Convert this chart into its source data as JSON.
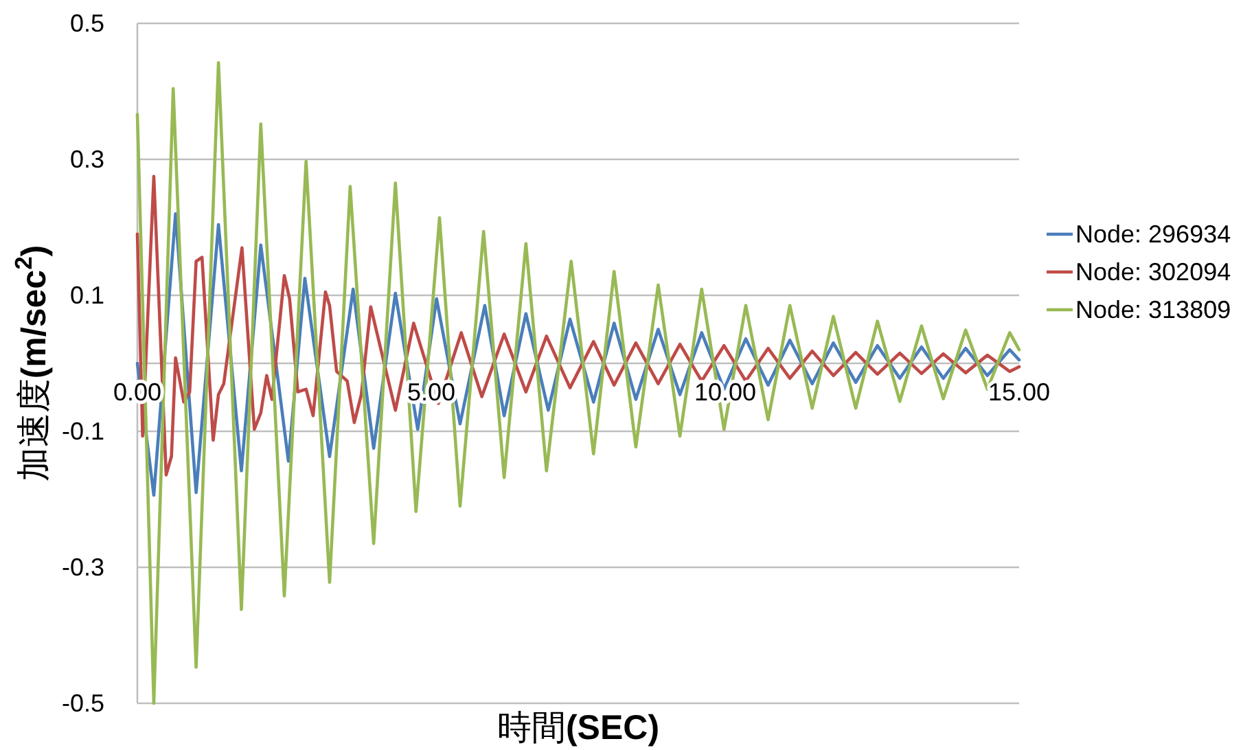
{
  "chart_data": {
    "type": "line",
    "xlabel": "時間**(SEC)**",
    "ylabel": "加速度**(m/sec$^{2}$)**",
    "xlim": [
      0,
      15
    ],
    "ylim": [
      -0.5,
      0.5
    ],
    "xticks": [
      {
        "value": 0,
        "label": "0.00"
      },
      {
        "value": 5,
        "label": "5.00"
      },
      {
        "value": 10,
        "label": "10.00"
      },
      {
        "value": 15,
        "label": "15.00"
      }
    ],
    "yticks": [
      -0.5,
      -0.3,
      -0.1,
      0.1,
      0.3,
      0.5
    ],
    "grid": "y",
    "legend": "right",
    "marker": "none",
    "line_style": "solid",
    "series": [
      {
        "name": "Node: 296934",
        "color": "#4a7ebb",
        "x": [
          0,
          0.28,
          0.65,
          1.0,
          1.38,
          1.77,
          2.1,
          2.57,
          2.85,
          3.27,
          3.67,
          4.02,
          4.39,
          4.77,
          5.09,
          5.49,
          5.91,
          6.24,
          6.61,
          6.99,
          7.36,
          7.76,
          8.11,
          8.48,
          8.86,
          9.23,
          9.6,
          9.98,
          10.35,
          10.73,
          11.1,
          11.48,
          11.84,
          12.22,
          12.59,
          12.97,
          13.34,
          13.71,
          14.09,
          14.46,
          14.84,
          15
        ],
        "values": [
          0,
          -0.194,
          0.22,
          -0.19,
          0.204,
          -0.158,
          0.174,
          -0.144,
          0.125,
          -0.137,
          0.109,
          -0.125,
          0.103,
          -0.097,
          0.095,
          -0.089,
          0.085,
          -0.077,
          0.073,
          -0.069,
          0.065,
          -0.057,
          0.059,
          -0.053,
          0.05,
          -0.046,
          0.045,
          -0.038,
          0.036,
          -0.032,
          0.034,
          -0.03,
          0.03,
          -0.028,
          0.026,
          -0.022,
          0.024,
          -0.022,
          0.022,
          -0.018,
          0.02,
          0.005
        ]
      },
      {
        "name": "Node: 302094",
        "color": "#be4b48",
        "x": [
          0,
          0.09,
          0.28,
          0.49,
          0.58,
          0.65,
          0.79,
          0.89,
          1.0,
          1.1,
          1.29,
          1.38,
          1.47,
          1.78,
          1.99,
          2.1,
          2.2,
          2.29,
          2.5,
          2.59,
          2.73,
          2.87,
          2.99,
          3.2,
          3.27,
          3.39,
          3.57,
          3.69,
          3.81,
          3.97,
          4.39,
          4.7,
          5.12,
          5.51,
          5.86,
          6.24,
          6.61,
          6.96,
          7.36,
          7.76,
          8.11,
          8.48,
          8.86,
          9.23,
          9.6,
          9.98,
          10.35,
          10.73,
          11.1,
          11.48,
          11.84,
          12.22,
          12.59,
          12.97,
          13.34,
          13.71,
          14.09,
          14.46,
          14.84,
          15
        ],
        "values": [
          0.19,
          -0.107,
          0.275,
          -0.164,
          -0.137,
          0.008,
          -0.057,
          -0.042,
          0.15,
          0.156,
          -0.113,
          -0.046,
          -0.03,
          0.17,
          -0.097,
          -0.073,
          -0.018,
          -0.053,
          0.129,
          0.095,
          -0.042,
          -0.038,
          -0.077,
          0.105,
          0.085,
          -0.012,
          -0.026,
          -0.087,
          -0.046,
          0.083,
          -0.069,
          0.059,
          -0.059,
          0.045,
          -0.049,
          0.043,
          -0.042,
          0.04,
          -0.036,
          0.032,
          -0.032,
          0.03,
          -0.03,
          0.028,
          -0.026,
          0.026,
          -0.026,
          0.022,
          -0.022,
          0.018,
          -0.018,
          0.016,
          -0.016,
          0.015,
          -0.015,
          0.014,
          -0.014,
          0.012,
          -0.012,
          -0.005
        ]
      },
      {
        "name": "Node: 313809",
        "color": "#98b954",
        "x": [
          0,
          0.28,
          0.61,
          1.0,
          1.38,
          1.77,
          2.1,
          2.5,
          2.87,
          3.27,
          3.62,
          4.02,
          4.39,
          4.74,
          5.14,
          5.49,
          5.89,
          6.24,
          6.61,
          6.96,
          7.38,
          7.76,
          8.11,
          8.48,
          8.86,
          9.23,
          9.6,
          9.98,
          10.35,
          10.73,
          11.1,
          11.48,
          11.84,
          12.22,
          12.59,
          12.97,
          13.34,
          13.71,
          14.09,
          14.46,
          14.84,
          15
        ],
        "values": [
          0.366,
          -0.5,
          0.404,
          -0.447,
          0.442,
          -0.362,
          0.352,
          -0.342,
          0.297,
          -0.322,
          0.26,
          -0.265,
          0.265,
          -0.218,
          0.214,
          -0.21,
          0.194,
          -0.168,
          0.176,
          -0.158,
          0.15,
          -0.133,
          0.135,
          -0.123,
          0.115,
          -0.107,
          0.109,
          -0.097,
          0.085,
          -0.083,
          0.085,
          -0.066,
          0.069,
          -0.066,
          0.062,
          -0.056,
          0.055,
          -0.052,
          0.049,
          -0.038,
          0.045,
          0.02
        ]
      }
    ]
  }
}
